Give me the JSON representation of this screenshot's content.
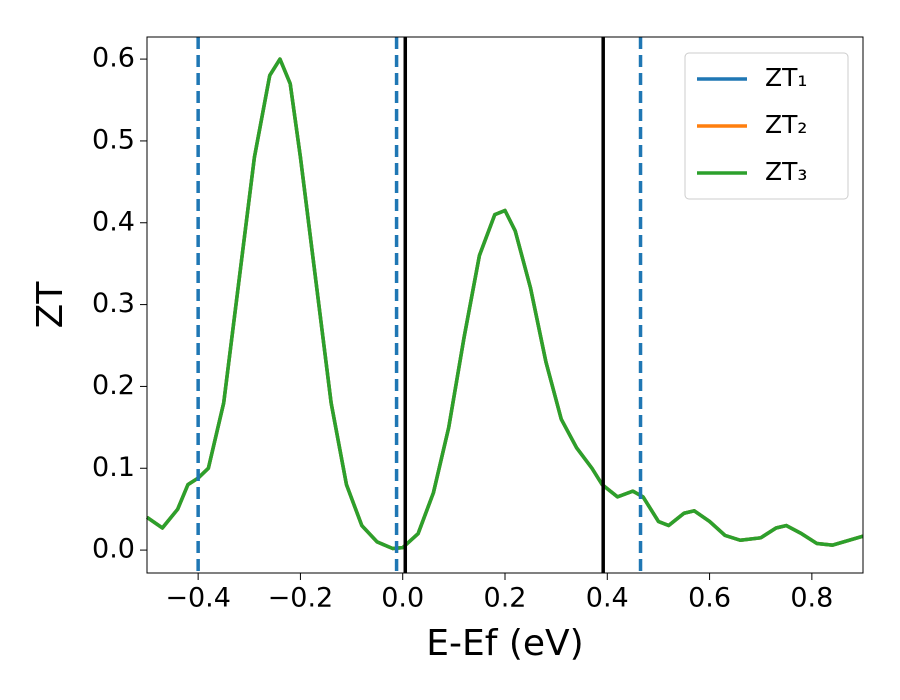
{
  "chart_data": {
    "type": "line",
    "x_label": "E-Ef (eV)",
    "y_label": "ZT",
    "xlim": [
      -0.5,
      0.9
    ],
    "ylim": [
      -0.028,
      0.627
    ],
    "xticks": [
      {
        "value": -0.4,
        "label": "−0.4"
      },
      {
        "value": -0.2,
        "label": "−0.2"
      },
      {
        "value": 0,
        "label": "0.0"
      },
      0.2,
      0.4,
      0.6,
      0.8
    ],
    "yticks": [
      {
        "value": 0,
        "label": "0.0"
      },
      0.1,
      0.2,
      0.3,
      0.4,
      0.5,
      0.6
    ],
    "legend": "upper right",
    "x": [
      -0.5,
      -0.47,
      -0.44,
      -0.42,
      -0.4,
      -0.38,
      -0.35,
      -0.32,
      -0.29,
      -0.26,
      -0.24,
      -0.22,
      -0.2,
      -0.17,
      -0.14,
      -0.11,
      -0.08,
      -0.05,
      -0.02,
      0.0,
      0.03,
      0.06,
      0.09,
      0.12,
      0.15,
      0.18,
      0.2,
      0.22,
      0.25,
      0.28,
      0.31,
      0.34,
      0.37,
      0.39,
      0.42,
      0.45,
      0.47,
      0.5,
      0.52,
      0.55,
      0.57,
      0.6,
      0.63,
      0.66,
      0.7,
      0.73,
      0.75,
      0.78,
      0.81,
      0.84,
      0.9
    ],
    "series": [
      {
        "name": "ZT₁",
        "color": "#1f77b4",
        "values": [
          0.04,
          0.027,
          0.05,
          0.08,
          0.088,
          0.1,
          0.18,
          0.33,
          0.48,
          0.58,
          0.6,
          0.57,
          0.48,
          0.33,
          0.18,
          0.08,
          0.03,
          0.01,
          0.002,
          0.003,
          0.02,
          0.07,
          0.15,
          0.26,
          0.36,
          0.41,
          0.415,
          0.39,
          0.32,
          0.23,
          0.16,
          0.125,
          0.1,
          0.08,
          0.065,
          0.072,
          0.065,
          0.035,
          0.03,
          0.045,
          0.048,
          0.035,
          0.018,
          0.012,
          0.015,
          0.027,
          0.03,
          0.02,
          0.008,
          0.006,
          0.017
        ]
      },
      {
        "name": "ZT₂",
        "color": "#ff7f0e",
        "values": [
          0.04,
          0.027,
          0.05,
          0.08,
          0.088,
          0.1,
          0.18,
          0.33,
          0.48,
          0.58,
          0.6,
          0.57,
          0.48,
          0.33,
          0.18,
          0.08,
          0.03,
          0.01,
          0.002,
          0.003,
          0.02,
          0.07,
          0.15,
          0.26,
          0.36,
          0.41,
          0.415,
          0.39,
          0.32,
          0.23,
          0.16,
          0.125,
          0.1,
          0.08,
          0.065,
          0.072,
          0.065,
          0.035,
          0.03,
          0.045,
          0.048,
          0.035,
          0.018,
          0.012,
          0.015,
          0.027,
          0.03,
          0.02,
          0.008,
          0.006,
          0.017
        ]
      },
      {
        "name": "ZT₃",
        "color": "#2ca02c",
        "values": [
          0.04,
          0.027,
          0.05,
          0.08,
          0.088,
          0.1,
          0.18,
          0.33,
          0.48,
          0.58,
          0.6,
          0.57,
          0.48,
          0.33,
          0.18,
          0.08,
          0.03,
          0.01,
          0.002,
          0.003,
          0.02,
          0.07,
          0.15,
          0.26,
          0.36,
          0.41,
          0.415,
          0.39,
          0.32,
          0.23,
          0.16,
          0.125,
          0.1,
          0.08,
          0.065,
          0.072,
          0.065,
          0.035,
          0.03,
          0.045,
          0.048,
          0.035,
          0.018,
          0.012,
          0.015,
          0.027,
          0.03,
          0.02,
          0.008,
          0.006,
          0.017
        ]
      }
    ],
    "vlines": [
      {
        "x": -0.4,
        "color": "#1f77b4",
        "style": "dashed"
      },
      {
        "x": -0.012,
        "color": "#1f77b4",
        "style": "dashed"
      },
      {
        "x": 0.465,
        "color": "#1f77b4",
        "style": "dashed"
      },
      {
        "x": 0.005,
        "color": "#000000",
        "style": "solid"
      },
      {
        "x": 0.392,
        "color": "#000000",
        "style": "solid"
      }
    ]
  }
}
